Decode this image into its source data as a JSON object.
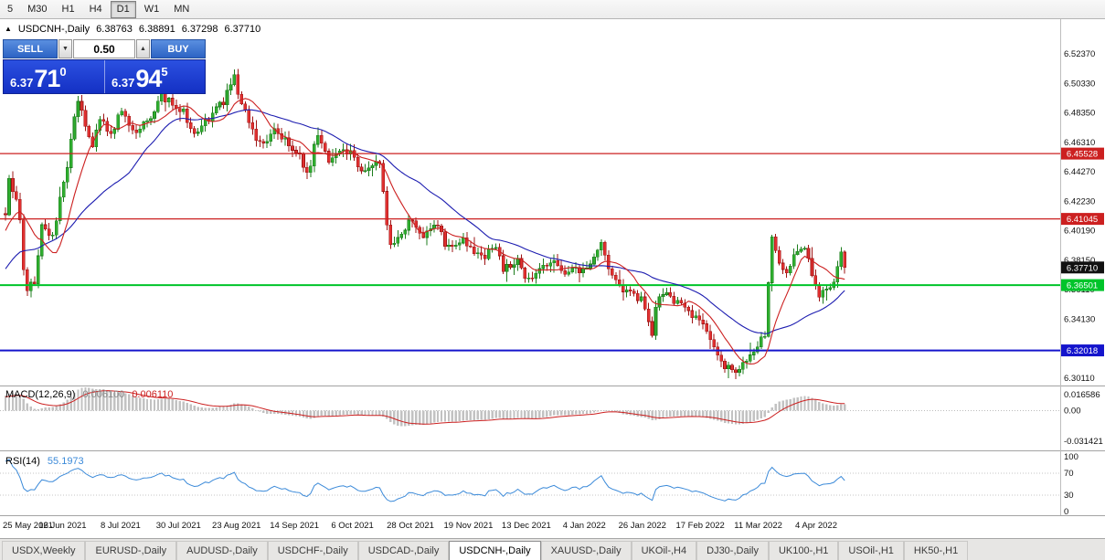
{
  "toolbar": {
    "timeframes": [
      "5",
      "M30",
      "H1",
      "H4",
      "D1",
      "W1",
      "MN"
    ],
    "active": "D1"
  },
  "chart_header": {
    "collapse_icon": "▲",
    "symbol": "USDCNH-,Daily",
    "open": "6.38763",
    "high": "6.38891",
    "low": "6.37298",
    "close": "6.37710"
  },
  "trade_panel": {
    "sell_label": "SELL",
    "buy_label": "BUY",
    "volume": "0.50",
    "volume_down_icon": "▼",
    "volume_up_icon": "▲",
    "sell_price": {
      "base": "6.37",
      "big": "71",
      "sup": "0"
    },
    "buy_price": {
      "base": "6.37",
      "big": "94",
      "sup": "5"
    }
  },
  "indicator_labels": {
    "macd": "MACD(12,26,9)",
    "macd_value_main": "0.006100",
    "macd_value_signal": "0.006110",
    "rsi": "RSI(14)",
    "rsi_value": "55.1973"
  },
  "bottom_tabs": {
    "active": "USDCNH-,Daily",
    "tabs": [
      "USDX,Weekly",
      "EURUSD-,Daily",
      "AUDUSD-,Daily",
      "USDCHF-,Daily",
      "USDCAD-,Daily",
      "USDCNH-,Daily",
      "XAUUSD-,Daily",
      "UKOil-,H4",
      "DJ30-,Daily",
      "UK100-,H1",
      "USOil-,H1",
      "HK50-,H1"
    ],
    "note": "USDCNH-,Daily tab is active"
  },
  "chart_data": {
    "type": "candlestick",
    "title": "USDCNH-,Daily",
    "x_labels": [
      "25 May 2021",
      "16 Jun 2021",
      "8 Jul 2021",
      "30 Jul 2021",
      "23 Aug 2021",
      "14 Sep 2021",
      "6 Oct 2021",
      "28 Oct 2021",
      "19 Nov 2021",
      "13 Dec 2021",
      "4 Jan 2022",
      "26 Jan 2022",
      "17 Feb 2022",
      "11 Mar 2022",
      "4 Apr 2022"
    ],
    "main": {
      "y_ticks": [
        "6.52370",
        "6.50330",
        "6.48350",
        "6.46310",
        "6.44270",
        "6.42230",
        "6.40190",
        "6.38150",
        "6.36110",
        "6.34130",
        "6.32090",
        "6.30110"
      ],
      "price_first_tick": 6.5237,
      "price_last_tick": 6.3011,
      "hlines": [
        {
          "price": 6.45528,
          "label": "6.45528",
          "color": "#cc2020",
          "width": 1.2
        },
        {
          "price": 6.41045,
          "label": "6.41045",
          "color": "#cc2020",
          "width": 1.2
        },
        {
          "price": 6.36501,
          "label": "6.36501",
          "color": "#00c42a",
          "width": 2
        },
        {
          "price": 6.32018,
          "label": "6.32018",
          "color": "#1414cc",
          "width": 2
        }
      ],
      "current_price_tag": {
        "price": 6.3771,
        "label": "6.37710",
        "color": "#111111"
      },
      "last_candle": {
        "o": 6.38763,
        "h": 6.38891,
        "l": 6.37298,
        "c": 6.3771
      },
      "num_candles": 232,
      "ma_fast_period": 10,
      "ma_slow_period": 30,
      "colors": {
        "up": "#2fae2f",
        "up_stroke": "#1d7d1d",
        "down": "#e03030",
        "down_stroke": "#9e1414",
        "ma_fast": "#cc2020",
        "ma_slow": "#1c1cb0"
      },
      "anchors": [
        [
          -30,
          6.335
        ],
        [
          -20,
          6.36
        ],
        [
          -10,
          6.39
        ],
        [
          0,
          6.412
        ],
        [
          1,
          6.438
        ],
        [
          3,
          6.422
        ],
        [
          6,
          6.363
        ],
        [
          8,
          6.368
        ],
        [
          10,
          6.405
        ],
        [
          13,
          6.398
        ],
        [
          16,
          6.438
        ],
        [
          20,
          6.49
        ],
        [
          24,
          6.462
        ],
        [
          26,
          6.478
        ],
        [
          29,
          6.47
        ],
        [
          32,
          6.486
        ],
        [
          35,
          6.47
        ],
        [
          39,
          6.478
        ],
        [
          43,
          6.494
        ],
        [
          48,
          6.486
        ],
        [
          52,
          6.47
        ],
        [
          55,
          6.478
        ],
        [
          59,
          6.488
        ],
        [
          63,
          6.507
        ],
        [
          65,
          6.49
        ],
        [
          67,
          6.478
        ],
        [
          70,
          6.462
        ],
        [
          74,
          6.47
        ],
        [
          80,
          6.458
        ],
        [
          83,
          6.442
        ],
        [
          86,
          6.468
        ],
        [
          89,
          6.45
        ],
        [
          93,
          6.46
        ],
        [
          95,
          6.455
        ],
        [
          98,
          6.442
        ],
        [
          101,
          6.448
        ],
        [
          103,
          6.45
        ],
        [
          105,
          6.404
        ],
        [
          106,
          6.392
        ],
        [
          108,
          6.398
        ],
        [
          110,
          6.402
        ],
        [
          111,
          6.41
        ],
        [
          115,
          6.4
        ],
        [
          118,
          6.408
        ],
        [
          122,
          6.39
        ],
        [
          126,
          6.396
        ],
        [
          127,
          6.39
        ],
        [
          131,
          6.384
        ],
        [
          135,
          6.392
        ],
        [
          137,
          6.376
        ],
        [
          141,
          6.382
        ],
        [
          144,
          6.368
        ],
        [
          147,
          6.376
        ],
        [
          151,
          6.38
        ],
        [
          155,
          6.374
        ],
        [
          159,
          6.376
        ],
        [
          162,
          6.382
        ],
        [
          164,
          6.392
        ],
        [
          167,
          6.372
        ],
        [
          171,
          6.36
        ],
        [
          175,
          6.356
        ],
        [
          178,
          6.332
        ],
        [
          179,
          6.35
        ],
        [
          181,
          6.36
        ],
        [
          185,
          6.354
        ],
        [
          189,
          6.344
        ],
        [
          191,
          6.34
        ],
        [
          194,
          6.328
        ],
        [
          196,
          6.316
        ],
        [
          199,
          6.308
        ],
        [
          201,
          6.304
        ],
        [
          204,
          6.314
        ],
        [
          207,
          6.324
        ],
        [
          209,
          6.332
        ],
        [
          211,
          6.4
        ],
        [
          213,
          6.382
        ],
        [
          215,
          6.372
        ],
        [
          217,
          6.386
        ],
        [
          220,
          6.392
        ],
        [
          222,
          6.37
        ],
        [
          224,
          6.356
        ],
        [
          226,
          6.362
        ],
        [
          228,
          6.368
        ],
        [
          230,
          6.386
        ],
        [
          231,
          6.3771
        ]
      ]
    },
    "macd": {
      "params": [
        12,
        26,
        9
      ],
      "y_ticks": [
        {
          "value": 0.016586,
          "label": "0.016586"
        },
        {
          "value": 0,
          "label": "0.00"
        },
        {
          "value": -0.031421,
          "label": "-0.031421"
        }
      ],
      "range": [
        0.024,
        -0.04
      ],
      "histogram_color": "#c2c2c2",
      "signal_color": "#cc2020"
    },
    "rsi": {
      "period": 14,
      "y_ticks": [
        {
          "value": 100,
          "label": "100"
        },
        {
          "value": 70,
          "label": "70"
        },
        {
          "value": 30,
          "label": "30"
        },
        {
          "value": 0,
          "label": "0"
        }
      ],
      "levels": [
        70,
        30
      ],
      "line_color": "#3b8ad9"
    }
  }
}
